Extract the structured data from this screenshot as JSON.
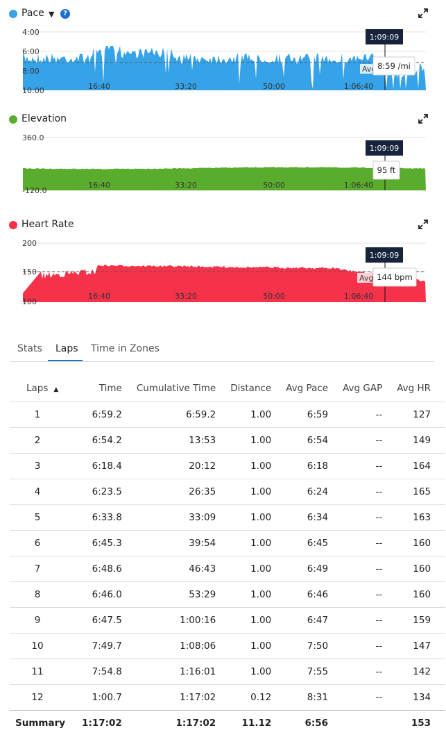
{
  "charts": [
    {
      "title": "Pace",
      "color": "#36a3e8",
      "has_dropdown": true,
      "has_help": true,
      "y_ticks": [
        "4:00",
        "6:00",
        "8:00",
        "10:00"
      ],
      "x_ticks": [
        "16:40",
        "33:20",
        "50:00",
        "1:06:40"
      ],
      "avg_label": "Avg",
      "cursor_time": "1:09:09",
      "cursor_value": "8:59 /mi"
    },
    {
      "title": "Elevation",
      "color": "#5aad2c",
      "has_dropdown": false,
      "has_help": false,
      "y_ticks": [
        "360.0",
        "-120.0"
      ],
      "x_ticks": [
        "16:40",
        "33:20",
        "50:00",
        "1:06:40"
      ],
      "avg_label": "",
      "cursor_time": "1:09:09",
      "cursor_value": "95 ft"
    },
    {
      "title": "Heart Rate",
      "color": "#f5324a",
      "has_dropdown": false,
      "has_help": false,
      "y_ticks": [
        "200",
        "150",
        "100"
      ],
      "x_ticks": [
        "16:40",
        "33:20",
        "50:00",
        "1:06:40"
      ],
      "avg_label": "Avg",
      "cursor_time": "1:09:09",
      "cursor_value": "144 bpm"
    }
  ],
  "tabs": [
    {
      "label": "Stats",
      "active": false
    },
    {
      "label": "Laps",
      "active": true
    },
    {
      "label": "Time in Zones",
      "active": false
    }
  ],
  "table": {
    "headers": [
      "Laps",
      "Time",
      "Cumulative Time",
      "Distance",
      "Avg Pace",
      "Avg GAP",
      "Avg HR"
    ],
    "sort_icon": "▲",
    "rows": [
      [
        "1",
        "6:59.2",
        "6:59.2",
        "1.00",
        "6:59",
        "--",
        "127"
      ],
      [
        "2",
        "6:54.2",
        "13:53",
        "1.00",
        "6:54",
        "--",
        "149"
      ],
      [
        "3",
        "6:18.4",
        "20:12",
        "1.00",
        "6:18",
        "--",
        "164"
      ],
      [
        "4",
        "6:23.5",
        "26:35",
        "1.00",
        "6:24",
        "--",
        "165"
      ],
      [
        "5",
        "6:33.8",
        "33:09",
        "1.00",
        "6:34",
        "--",
        "163"
      ],
      [
        "6",
        "6:45.3",
        "39:54",
        "1.00",
        "6:45",
        "--",
        "160"
      ],
      [
        "7",
        "6:48.6",
        "46:43",
        "1.00",
        "6:49",
        "--",
        "160"
      ],
      [
        "8",
        "6:46.0",
        "53:29",
        "1.00",
        "6:46",
        "--",
        "160"
      ],
      [
        "9",
        "6:47.5",
        "1:00:16",
        "1.00",
        "6:47",
        "--",
        "159"
      ],
      [
        "10",
        "7:49.7",
        "1:08:06",
        "1.00",
        "7:50",
        "--",
        "147"
      ],
      [
        "11",
        "7:54.8",
        "1:16:01",
        "1.00",
        "7:55",
        "--",
        "142"
      ],
      [
        "12",
        "1:00.7",
        "1:17:02",
        "0.12",
        "8:31",
        "--",
        "134"
      ]
    ],
    "summary": [
      "Summary",
      "1:17:02",
      "1:17:02",
      "11.12",
      "6:56",
      "",
      "153"
    ]
  }
}
